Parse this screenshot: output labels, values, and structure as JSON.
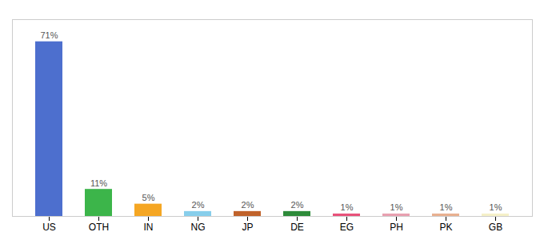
{
  "chart_data": {
    "type": "bar",
    "categories": [
      "US",
      "OTH",
      "IN",
      "NG",
      "JP",
      "DE",
      "EG",
      "PH",
      "PK",
      "GB"
    ],
    "values": [
      71,
      11,
      5,
      2,
      2,
      2,
      1,
      1,
      1,
      1
    ],
    "value_labels": [
      "71%",
      "11%",
      "5%",
      "2%",
      "2%",
      "2%",
      "1%",
      "1%",
      "1%",
      "1%"
    ],
    "colors": [
      "#4d6fce",
      "#3cb54a",
      "#f5a623",
      "#87ceeb",
      "#c0622b",
      "#2e8b3a",
      "#e8527a",
      "#e8a0b0",
      "#e8b090",
      "#f5f0c8"
    ],
    "ylim": [
      0,
      80
    ],
    "data_labels": true,
    "tick_labels": "x",
    "grid": false
  }
}
